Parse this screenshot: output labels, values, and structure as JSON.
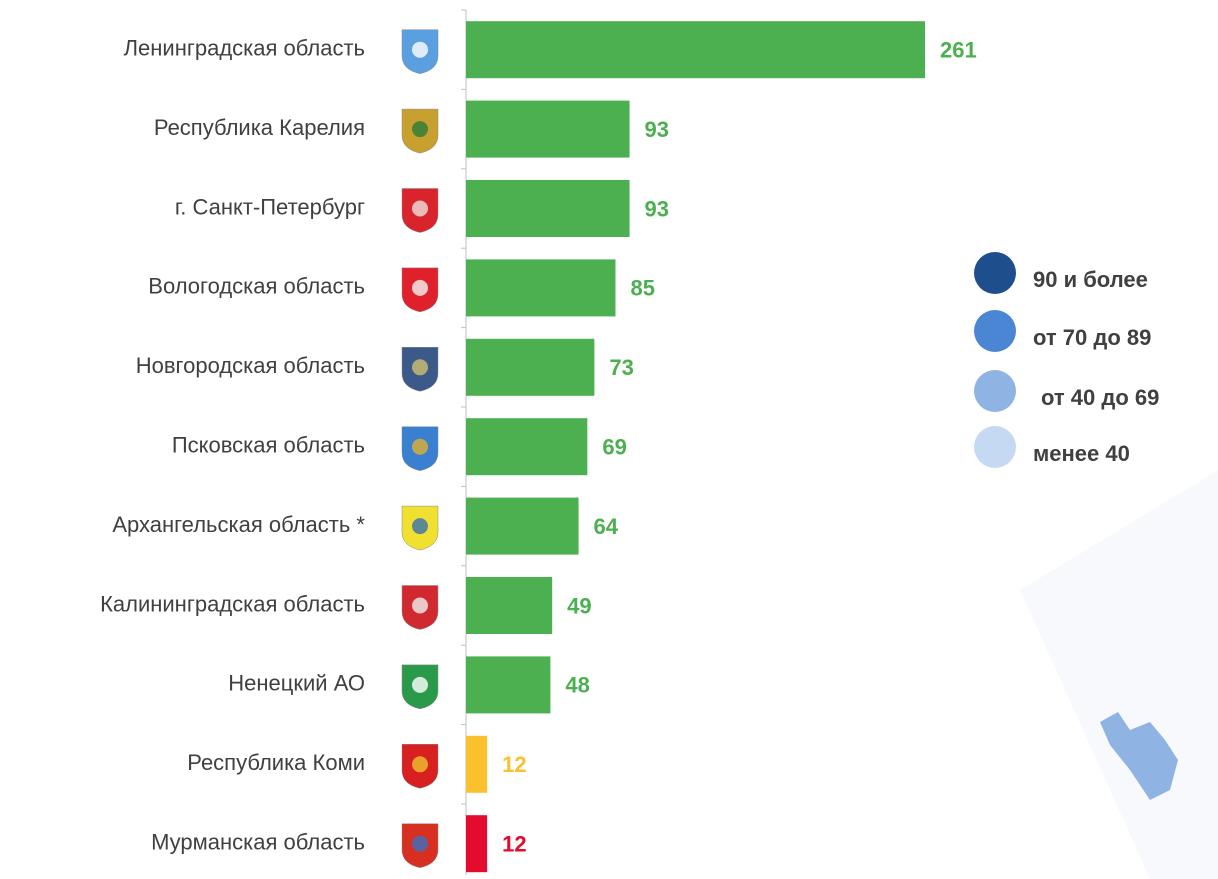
{
  "chart_data": {
    "type": "bar",
    "orientation": "horizontal",
    "categories": [
      "Ленинградская область",
      "Республика Карелия",
      "г. Санкт-Петербург",
      "Вологодская область",
      "Новгородская область",
      "Псковская область",
      "Архангельская область *",
      "Калининградская область",
      "Ненецкий АО",
      "Республика Коми",
      "Мурманская область"
    ],
    "values": [
      261,
      93,
      93,
      85,
      73,
      69,
      64,
      49,
      48,
      12,
      12
    ],
    "colors": [
      "#4caf50",
      "#4caf50",
      "#4caf50",
      "#4caf50",
      "#4caf50",
      "#4caf50",
      "#4caf50",
      "#4caf50",
      "#4caf50",
      "#fbc02d",
      "#e30b2e"
    ],
    "legend": [
      {
        "name": "90 и более",
        "color": "#1f4e8c"
      },
      {
        "name": "от 70 до 89",
        "color": "#4a86d4"
      },
      {
        "name": "от 40 до 69",
        "color": "#8fb4e3"
      },
      {
        "name": "менее 40",
        "color": "#c5daf2"
      }
    ]
  }
}
